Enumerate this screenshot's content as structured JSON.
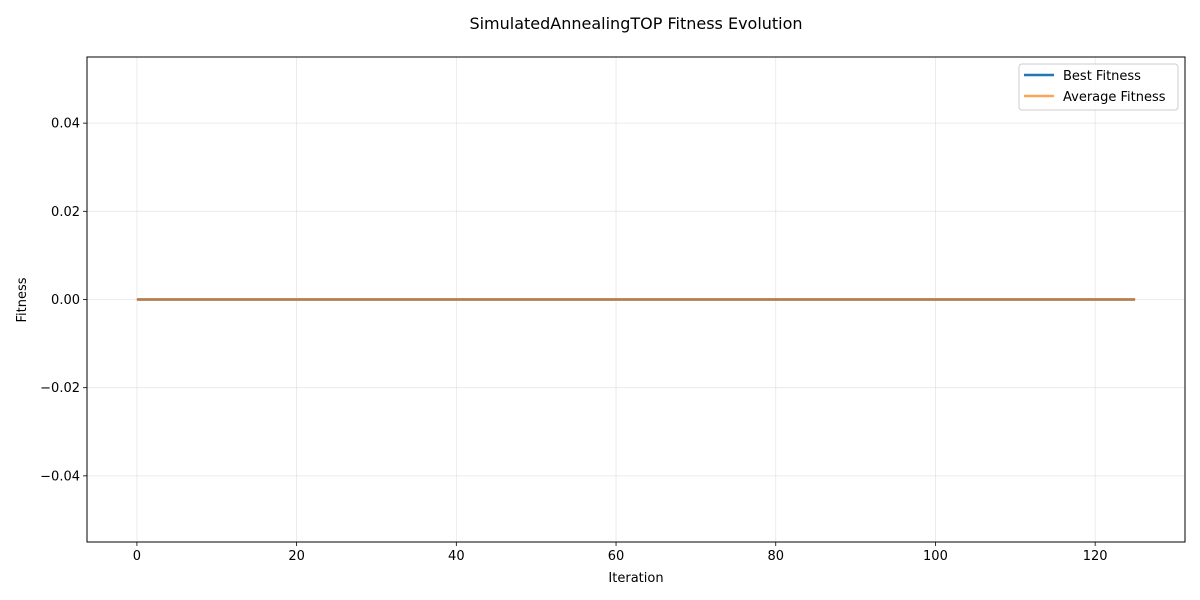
{
  "chart_data": {
    "type": "line",
    "title": "SimulatedAnnealingTOP Fitness Evolution",
    "xlabel": "Iteration",
    "ylabel": "Fitness",
    "xlim": [
      -6.25,
      131.25
    ],
    "ylim": [
      -0.055,
      0.055
    ],
    "xticks": [
      0,
      20,
      40,
      60,
      80,
      100,
      120
    ],
    "xtick_labels": [
      "0",
      "20",
      "40",
      "60",
      "80",
      "100",
      "120"
    ],
    "yticks": [
      -0.04,
      -0.02,
      0.0,
      0.02,
      0.04
    ],
    "ytick_labels": [
      "−0.04",
      "−0.02",
      "0.00",
      "0.02",
      "0.04"
    ],
    "grid": true,
    "legend_position": "top-right",
    "x": [
      0,
      125
    ],
    "series": [
      {
        "name": "Best Fitness",
        "values": [
          0,
          0
        ],
        "color": "#1f77b4"
      },
      {
        "name": "Average Fitness",
        "values": [
          0,
          0
        ],
        "color": "#ff7f0e"
      }
    ]
  }
}
